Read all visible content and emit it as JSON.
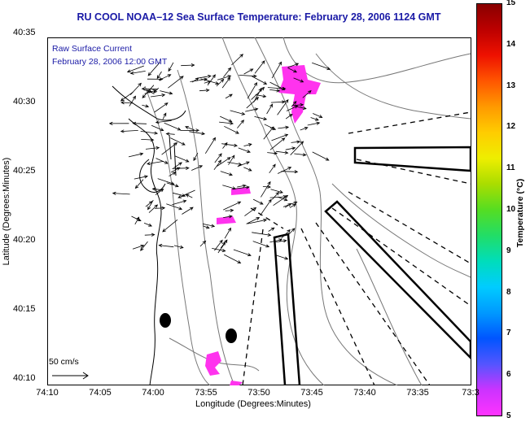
{
  "title": "RU COOL  NOAA–12  Sea Surface Temperature:  February 28, 2006 1124 GMT",
  "inset": {
    "line1": "Raw Surface Current",
    "line2": "February 28, 2006 12:00 GMT"
  },
  "axes": {
    "xlabel": "Longitude (Degrees:Minutes)",
    "ylabel": "Latitude (Degrees:Minutes)",
    "x_ticks": [
      "74:10",
      "74:05",
      "74:00",
      "73:55",
      "73:50",
      "73:45",
      "73:40",
      "73:35",
      "73:3"
    ],
    "y_ticks": [
      "40:35",
      "40:30",
      "40:25",
      "40:20",
      "40:15",
      "40:10"
    ]
  },
  "colorbar": {
    "title": "Temperature (°C)",
    "ticks": [
      "15",
      "14",
      "13",
      "12",
      "11",
      "10",
      "9",
      "8",
      "7",
      "6",
      "5"
    ],
    "colors": [
      "#ff33ff",
      "#cc33ff",
      "#5555ff",
      "#0055ff",
      "#0099ff",
      "#00ccff",
      "#00ddbb",
      "#22dd66",
      "#55dd22",
      "#aadd00",
      "#eeee00",
      "#ffcc00",
      "#ff9900",
      "#ff5500",
      "#ee1100",
      "#bb0000",
      "#880000"
    ]
  },
  "scale": {
    "label": "50 cm/s"
  },
  "colors": {
    "title": "#1a1aa6",
    "sst_patch": "#ff33ee",
    "coast": "#000000",
    "bathymetry": "#777777"
  }
}
